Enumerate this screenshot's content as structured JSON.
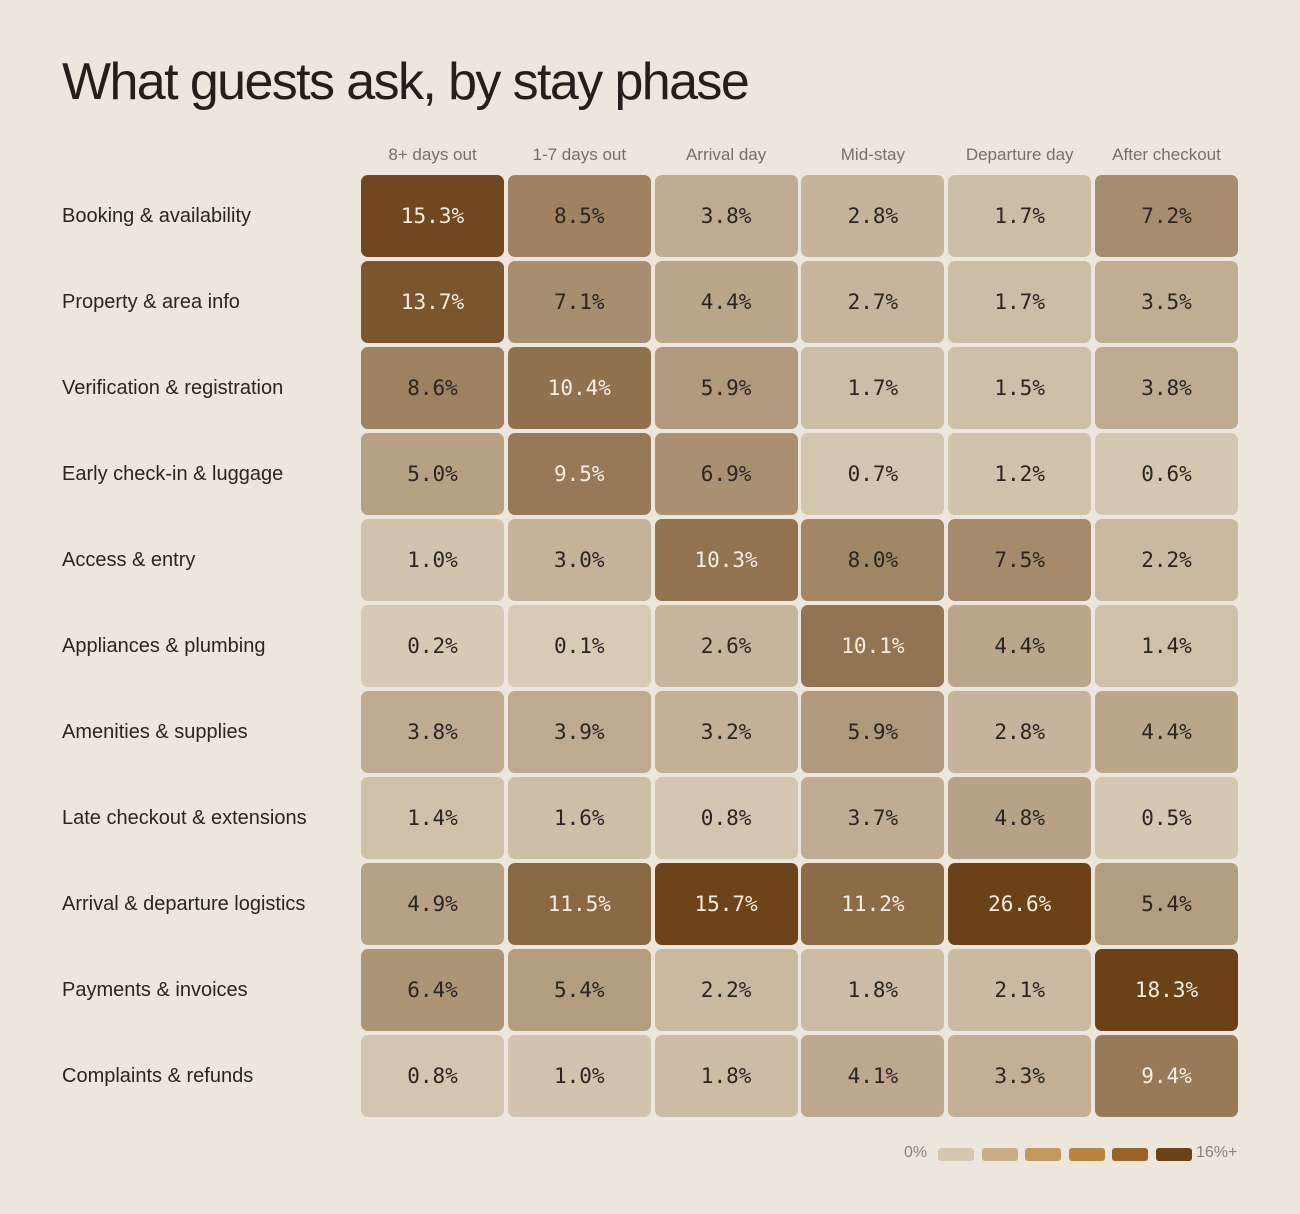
{
  "title": "What guests ask, by stay phase",
  "chart_data": {
    "type": "heatmap",
    "title": "What guests ask, by stay phase",
    "columns": [
      "8+ days out",
      "1-7 days out",
      "Arrival day",
      "Mid-stay",
      "Departure day",
      "After checkout"
    ],
    "rows": [
      {
        "label": "Booking & availability",
        "values": [
          "15.3%",
          "8.5%",
          "3.8%",
          "2.8%",
          "1.7%",
          "7.2%"
        ]
      },
      {
        "label": "Property & area info",
        "values": [
          "13.7%",
          "7.1%",
          "4.4%",
          "2.7%",
          "1.7%",
          "3.5%"
        ]
      },
      {
        "label": "Verification & registration",
        "values": [
          "8.6%",
          "10.4%",
          "5.9%",
          "1.7%",
          "1.5%",
          "3.8%"
        ]
      },
      {
        "label": "Early check-in & luggage",
        "values": [
          "5.0%",
          "9.5%",
          "6.9%",
          "0.7%",
          "1.2%",
          "0.6%"
        ]
      },
      {
        "label": "Access & entry",
        "values": [
          "1.0%",
          "3.0%",
          "10.3%",
          "8.0%",
          "7.5%",
          "2.2%"
        ]
      },
      {
        "label": "Appliances & plumbing",
        "values": [
          "0.2%",
          "0.1%",
          "2.6%",
          "10.1%",
          "4.4%",
          "1.4%"
        ]
      },
      {
        "label": "Amenities & supplies",
        "values": [
          "3.8%",
          "3.9%",
          "3.2%",
          "5.9%",
          "2.8%",
          "4.4%"
        ]
      },
      {
        "label": "Late checkout & extensions",
        "values": [
          "1.4%",
          "1.6%",
          "0.8%",
          "3.7%",
          "4.8%",
          "0.5%"
        ]
      },
      {
        "label": "Arrival & departure logistics",
        "values": [
          "4.9%",
          "11.5%",
          "15.7%",
          "11.2%",
          "26.6%",
          "5.4%"
        ]
      },
      {
        "label": "Payments & invoices",
        "values": [
          "6.4%",
          "5.4%",
          "2.2%",
          "1.8%",
          "2.1%",
          "18.3%"
        ]
      },
      {
        "label": "Complaints & refunds",
        "values": [
          "0.8%",
          "1.0%",
          "1.8%",
          "4.1%",
          "3.3%",
          "9.4%"
        ]
      }
    ],
    "color_scale": {
      "min_label": "0%",
      "max_label": "16%+",
      "max_value": 16,
      "light": "#D8CCB7",
      "dark": "#6B4117"
    },
    "legend_colors": [
      "#D4C6AE",
      "#C8AE88",
      "#C2995E",
      "#B8843F",
      "#9A6429",
      "#6B4117"
    ]
  }
}
